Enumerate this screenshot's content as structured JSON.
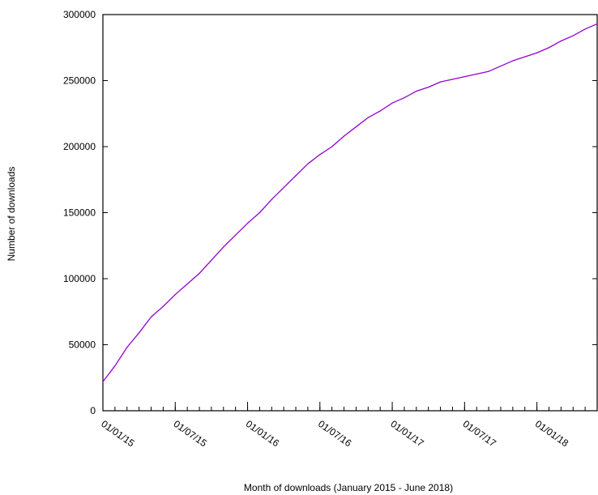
{
  "chart_data": {
    "type": "line",
    "xlabel": "Month of downloads (January 2015 - June 2018)",
    "ylabel": "Number of downloads",
    "ylim": [
      0,
      300000
    ],
    "y_ticks": [
      0,
      50000,
      100000,
      150000,
      200000,
      250000,
      300000
    ],
    "x_range": [
      "2015-01-01",
      "2018-06-01"
    ],
    "x_tick_labels": [
      "01/01/15",
      "01/07/15",
      "01/01/16",
      "01/07/16",
      "01/01/17",
      "01/07/17",
      "01/01/18"
    ],
    "x_tick_dates": [
      "2015-01-01",
      "2015-07-01",
      "2016-01-01",
      "2016-07-01",
      "2017-01-01",
      "2017-07-01",
      "2018-01-01"
    ],
    "line_color": "#9400d3",
    "grid": false,
    "series": [
      {
        "x": [
          "2015-01-01",
          "2015-02-01",
          "2015-03-01",
          "2015-04-01",
          "2015-05-01",
          "2015-06-01",
          "2015-07-01",
          "2015-08-01",
          "2015-09-01",
          "2015-10-01",
          "2015-11-01",
          "2015-12-01",
          "2016-01-01",
          "2016-02-01",
          "2016-03-01",
          "2016-04-01",
          "2016-05-01",
          "2016-06-01",
          "2016-07-01",
          "2016-08-01",
          "2016-09-01",
          "2016-10-01",
          "2016-11-01",
          "2016-12-01",
          "2017-01-01",
          "2017-02-01",
          "2017-03-01",
          "2017-04-01",
          "2017-05-01",
          "2017-06-01",
          "2017-07-01",
          "2017-08-01",
          "2017-09-01",
          "2017-10-01",
          "2017-11-01",
          "2017-12-01",
          "2018-01-01",
          "2018-02-01",
          "2018-03-01",
          "2018-04-01",
          "2018-05-01",
          "2018-06-01"
        ],
        "values": [
          22000,
          34000,
          48000,
          59000,
          71000,
          79000,
          88000,
          96000,
          104000,
          114000,
          124000,
          133000,
          142000,
          150000,
          160000,
          169000,
          178000,
          187000,
          194000,
          200000,
          208000,
          215000,
          222000,
          227000,
          233000,
          237000,
          242000,
          245000,
          249000,
          251000,
          253000,
          255000,
          257000,
          261000,
          265000,
          268000,
          271000,
          275000,
          280000,
          284000,
          289000,
          293000
        ]
      }
    ]
  }
}
